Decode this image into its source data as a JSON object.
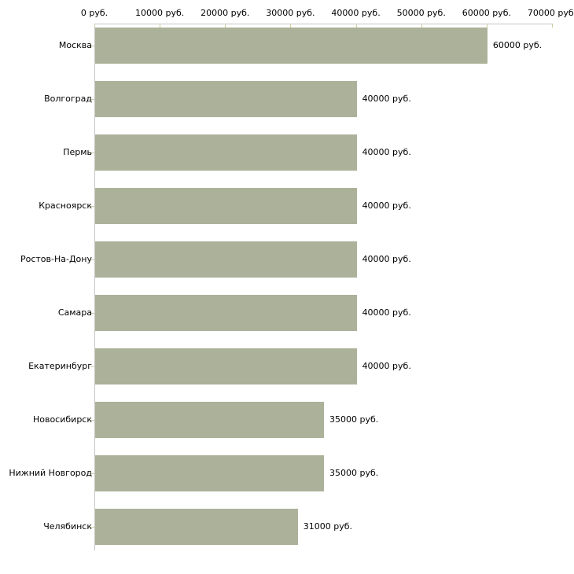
{
  "chart_data": {
    "type": "bar",
    "orientation": "horizontal",
    "title": "",
    "xlabel": "",
    "ylabel": "",
    "categories": [
      "Москва",
      "Волгоград",
      "Пермь",
      "Красноярск",
      "Ростов-На-Дону",
      "Самара",
      "Екатеринбург",
      "Новосибирск",
      "Нижний Новгород",
      "Челябинск"
    ],
    "values": [
      60000,
      40000,
      40000,
      40000,
      40000,
      40000,
      40000,
      35000,
      35000,
      31000
    ],
    "value_labels": [
      "60000 руб.",
      "40000 руб.",
      "40000 руб.",
      "40000 руб.",
      "40000 руб.",
      "40000 руб.",
      "40000 руб.",
      "35000 руб.",
      "35000 руб.",
      "31000 руб."
    ],
    "xlim": [
      0,
      70000
    ],
    "x_tick_values": [
      0,
      10000,
      20000,
      30000,
      40000,
      50000,
      60000,
      70000
    ],
    "x_tick_labels": [
      "0 руб.",
      "10000 руб.",
      "20000 руб.",
      "30000 руб.",
      "40000 руб.",
      "50000 руб.",
      "60000 руб.",
      "70000 руб."
    ],
    "x_axis_position": "top",
    "grid": false,
    "legend": false,
    "colors": {
      "bar": "#acb29a",
      "axis_line": "#c6c6c6",
      "tick_mark": "#cdcaa0",
      "text": "#000000",
      "background": "#ffffff"
    }
  }
}
